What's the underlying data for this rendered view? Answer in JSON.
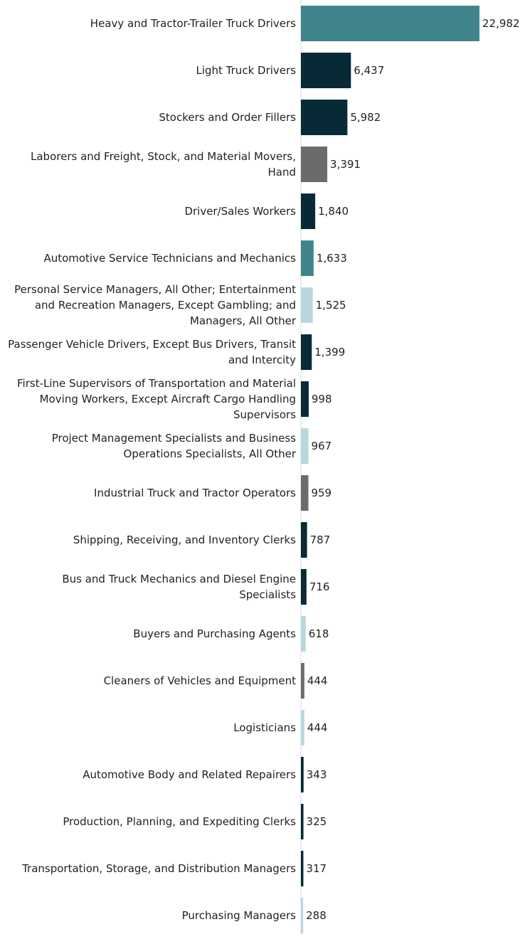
{
  "chart_data": {
    "type": "bar",
    "orientation": "horizontal",
    "title": "",
    "xlabel": "",
    "ylabel": "",
    "xlim": [
      0,
      22982
    ],
    "grid": false,
    "legend": "none",
    "colors": {
      "teal": "#41858c",
      "navy": "#082a37",
      "gray": "#6b6b6b",
      "light": "#b8d8df"
    },
    "categories": [
      "Heavy and Tractor-Trailer Truck Drivers",
      "Light Truck Drivers",
      "Stockers and Order Fillers",
      "Laborers and Freight, Stock, and Material Movers, Hand",
      "Driver/Sales Workers",
      "Automotive Service Technicians and Mechanics",
      "Personal Service Managers, All Other; Entertainment and Recreation Managers, Except Gambling; and Managers, All Other",
      "Passenger Vehicle Drivers, Except Bus Drivers, Transit and Intercity",
      "First-Line Supervisors of Transportation and Material Moving Workers, Except Aircraft Cargo Handling Supervisors",
      "Project Management Specialists and Business Operations Specialists, All Other",
      "Industrial Truck and Tractor Operators",
      "Shipping, Receiving, and Inventory Clerks",
      "Bus and Truck Mechanics and Diesel Engine Specialists",
      "Buyers and Purchasing Agents",
      "Cleaners of Vehicles and Equipment",
      "Logisticians",
      "Automotive Body and Related Repairers",
      "Production, Planning, and Expediting Clerks",
      "Transportation, Storage, and Distribution Managers",
      "Purchasing Managers"
    ],
    "label_lines": [
      [
        "Heavy and Tractor-Trailer Truck Drivers"
      ],
      [
        "Light Truck Drivers"
      ],
      [
        "Stockers and Order Fillers"
      ],
      [
        "Laborers and Freight, Stock, and Material Movers,",
        "Hand"
      ],
      [
        "Driver/Sales Workers"
      ],
      [
        "Automotive Service Technicians and Mechanics"
      ],
      [
        "Personal Service Managers, All Other; Entertainment",
        "and Recreation Managers, Except Gambling; and",
        "Managers, All Other"
      ],
      [
        "Passenger Vehicle Drivers, Except Bus Drivers, Transit",
        "and Intercity"
      ],
      [
        "First-Line Supervisors of Transportation and Material",
        "Moving Workers, Except Aircraft Cargo Handling",
        "Supervisors"
      ],
      [
        "Project Management Specialists and Business",
        "Operations Specialists, All Other"
      ],
      [
        "Industrial Truck and Tractor Operators"
      ],
      [
        "Shipping, Receiving, and Inventory Clerks"
      ],
      [
        "Bus and Truck Mechanics and Diesel Engine",
        "Specialists"
      ],
      [
        "Buyers and Purchasing Agents"
      ],
      [
        "Cleaners of Vehicles and Equipment"
      ],
      [
        "Logisticians"
      ],
      [
        "Automotive Body and Related Repairers"
      ],
      [
        "Production, Planning, and Expediting Clerks"
      ],
      [
        "Transportation, Storage, and Distribution Managers"
      ],
      [
        "Purchasing Managers"
      ]
    ],
    "values": [
      22982,
      6437,
      5982,
      3391,
      1840,
      1633,
      1525,
      1399,
      998,
      967,
      959,
      787,
      716,
      618,
      444,
      444,
      343,
      325,
      317,
      288
    ],
    "value_labels": [
      "22,982",
      "6,437",
      "5,982",
      "3,391",
      "1,840",
      "1,633",
      "1,525",
      "1,399",
      "998",
      "967",
      "959",
      "787",
      "716",
      "618",
      "444",
      "444",
      "343",
      "325",
      "317",
      "288"
    ],
    "bar_colors": [
      "teal",
      "navy",
      "navy",
      "gray",
      "navy",
      "teal",
      "light",
      "navy",
      "navy",
      "light",
      "gray",
      "navy",
      "navy",
      "light",
      "gray",
      "light",
      "navy",
      "navy",
      "navy",
      "light"
    ]
  }
}
